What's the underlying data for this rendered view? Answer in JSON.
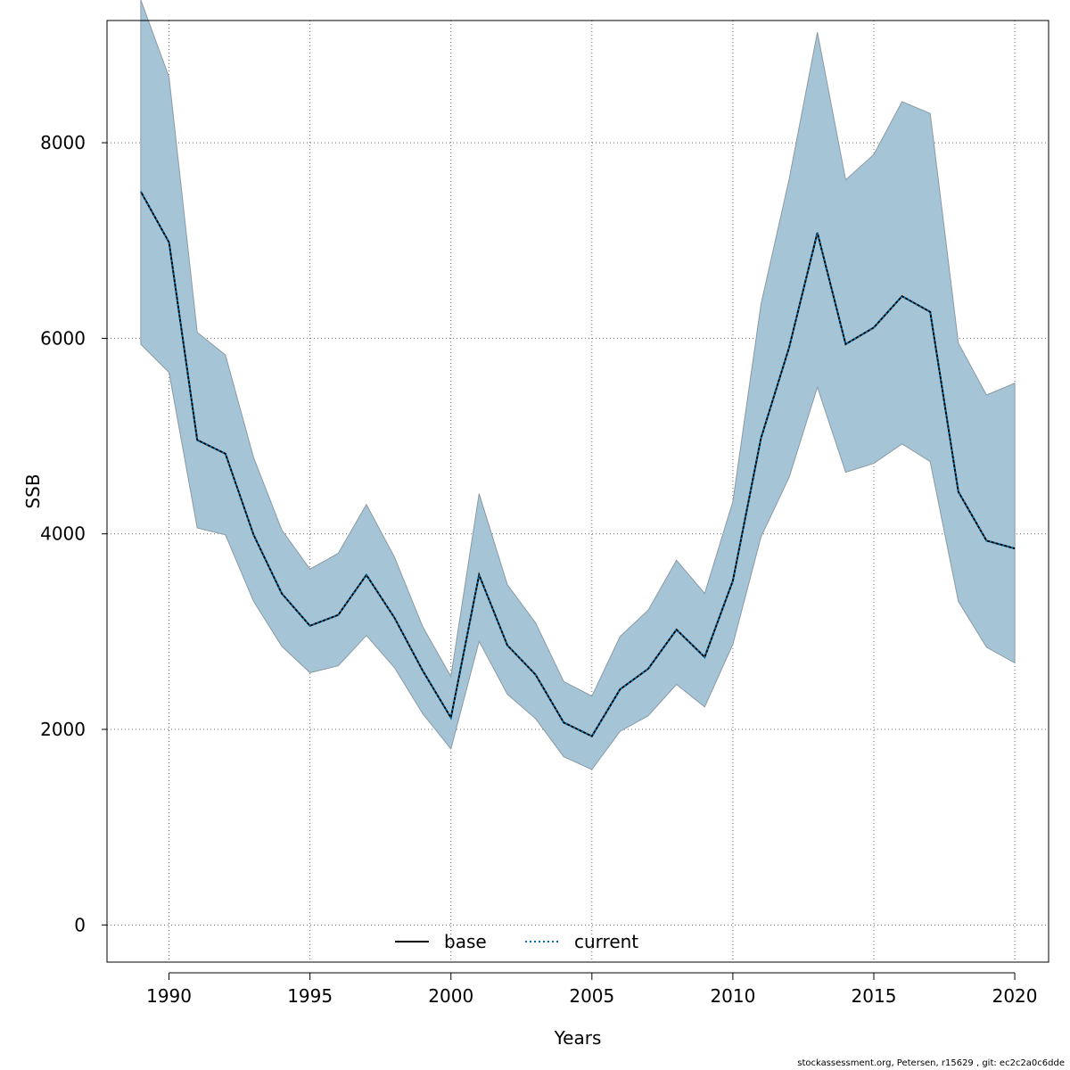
{
  "chart_data": {
    "type": "line",
    "xlabel": "Years",
    "ylabel": "SSB",
    "xlim": [
      1987.8,
      2021.2
    ],
    "ylim": [
      -380,
      9250
    ],
    "x_ticks": [
      1990,
      1995,
      2000,
      2005,
      2010,
      2015,
      2020
    ],
    "y_ticks": [
      0,
      2000,
      4000,
      6000,
      8000
    ],
    "grid": true,
    "legend_position": "bottom-center",
    "x": [
      1989,
      1990,
      1991,
      1992,
      1993,
      1994,
      1995,
      1996,
      1997,
      1998,
      1999,
      2000,
      2001,
      2002,
      2003,
      2004,
      2005,
      2006,
      2007,
      2008,
      2009,
      2010,
      2011,
      2012,
      2013,
      2014,
      2015,
      2016,
      2017,
      2018,
      2019,
      2020
    ],
    "series": [
      {
        "name": "base",
        "line_style": "solid",
        "color": "#000000",
        "values": [
          7500,
          6980,
          4960,
          4820,
          3990,
          3390,
          3060,
          3170,
          3580,
          3140,
          2600,
          2120,
          3580,
          2860,
          2560,
          2070,
          1930,
          2410,
          2620,
          3020,
          2740,
          3520,
          4980,
          5910,
          7080,
          5940,
          6110,
          6430,
          6270,
          4430,
          3930,
          3850
        ]
      },
      {
        "name": "current",
        "line_style": "dotted",
        "color": "#0072B2",
        "values": [
          7500,
          6980,
          4960,
          4820,
          3990,
          3390,
          3060,
          3170,
          3580,
          3140,
          2600,
          2120,
          3580,
          2860,
          2560,
          2070,
          1930,
          2410,
          2620,
          3020,
          2740,
          3520,
          4980,
          5910,
          7080,
          5940,
          6110,
          6430,
          6270,
          4430,
          3930,
          3850
        ]
      }
    ],
    "confidence_band": {
      "color": "#a5c5d6",
      "border_color": "#8a9aa5",
      "upper": [
        9460,
        8670,
        6060,
        5830,
        4780,
        4040,
        3640,
        3800,
        4300,
        3760,
        3050,
        2540,
        4410,
        3480,
        3090,
        2490,
        2340,
        2950,
        3220,
        3730,
        3390,
        4330,
        6350,
        7630,
        9130,
        7620,
        7880,
        8420,
        8300,
        5950,
        5420,
        5540
      ],
      "lower": [
        5940,
        5650,
        4060,
        3990,
        3310,
        2850,
        2580,
        2650,
        2960,
        2630,
        2160,
        1800,
        2900,
        2360,
        2110,
        1720,
        1590,
        1980,
        2140,
        2460,
        2230,
        2870,
        3970,
        4580,
        5500,
        4630,
        4720,
        4920,
        4740,
        3310,
        2840,
        2680
      ]
    }
  },
  "legend": {
    "items": [
      {
        "label": "base"
      },
      {
        "label": "current"
      }
    ]
  },
  "footer": {
    "text": "stockassessment.org, Petersen, r15629 , git: ec2c2a0c6dde"
  }
}
